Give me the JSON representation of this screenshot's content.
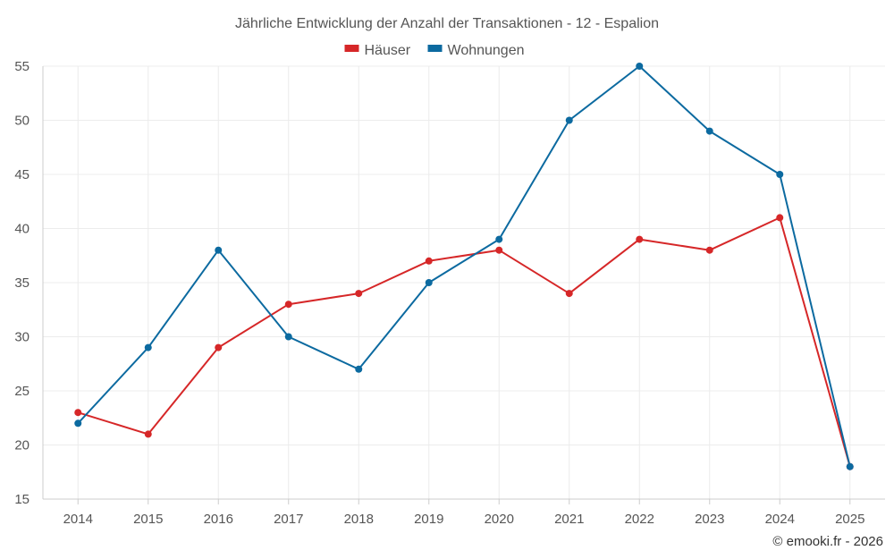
{
  "chart_data": {
    "type": "line",
    "title": "Jährliche Entwicklung der Anzahl der Transaktionen - 12 - Espalion",
    "xlabel": "",
    "ylabel": "",
    "categories": [
      "2014",
      "2015",
      "2016",
      "2017",
      "2018",
      "2019",
      "2020",
      "2021",
      "2022",
      "2023",
      "2024",
      "2025"
    ],
    "ylim": [
      15,
      55
    ],
    "yticks": [
      15,
      20,
      25,
      30,
      35,
      40,
      45,
      50,
      55
    ],
    "grid": true,
    "legend_position": "top-center",
    "series": [
      {
        "name": "Häuser",
        "color": "#d62728",
        "values": [
          23,
          21,
          29,
          33,
          34,
          37,
          38,
          34,
          39,
          38,
          41,
          18
        ]
      },
      {
        "name": "Wohnungen",
        "color": "#0c6aa0",
        "values": [
          22,
          29,
          38,
          30,
          27,
          35,
          39,
          50,
          55,
          49,
          45,
          18
        ]
      }
    ]
  },
  "credit": "© emooki.fr - 2026"
}
